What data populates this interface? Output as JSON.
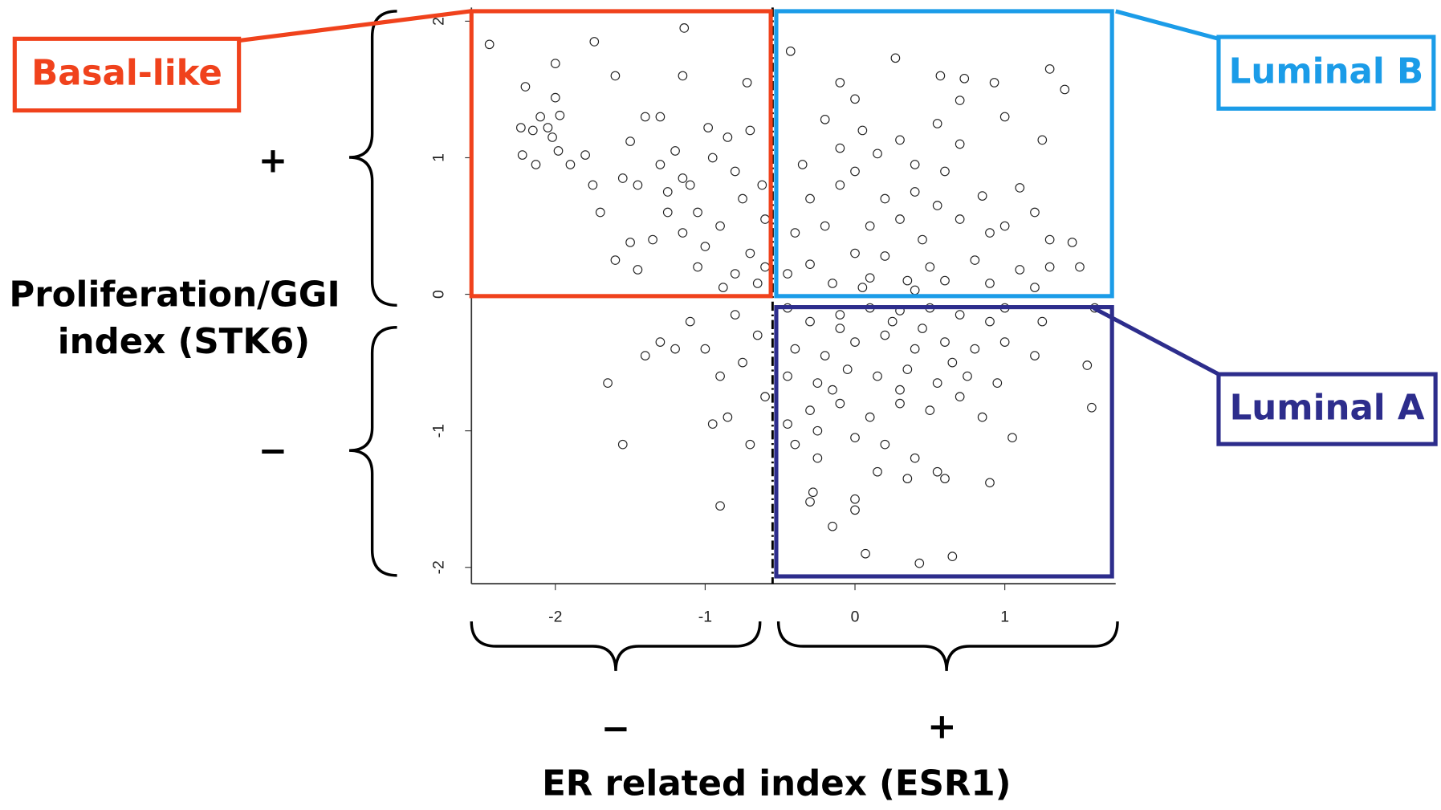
{
  "chart_data": {
    "type": "scatter",
    "xlabel": "ER related index (ESR1)",
    "ylabel": [
      "Proliferation/GGI",
      "index (STK6)"
    ],
    "quadrant_labels": [
      "Basal-like",
      "Luminal B",
      "Luminal A"
    ],
    "quadrant_colors": [
      "#f0421c",
      "#1b9ce8",
      "#2d2d8c"
    ],
    "y_signs": [
      "+",
      "−"
    ],
    "x_signs": [
      "−",
      "+"
    ],
    "cutoffs": {
      "x": -0.55,
      "y": 0
    },
    "xlim": [
      -2.56,
      1.74
    ],
    "ylim": [
      -2.12,
      2.1
    ],
    "xticks": [
      -2,
      -1,
      0,
      1
    ],
    "yticks": [
      2,
      1,
      0,
      -1,
      -2
    ],
    "color": "#222222",
    "x": [
      -2.44,
      -1.74,
      -1.14,
      -2.2,
      -2.0,
      -2.0,
      -1.97,
      -2.05,
      -2.1,
      -2.15,
      -2.23,
      -2.02,
      -1.98,
      -2.22,
      -2.13,
      -1.9,
      -1.8,
      -1.75,
      -1.7,
      -1.6,
      -1.5,
      -1.4,
      -1.55,
      -1.45,
      -1.3,
      -1.3,
      -1.2,
      -1.15,
      -1.1,
      -1.25,
      -1.05,
      -0.95,
      -0.85,
      -0.8,
      -0.75,
      -0.9,
      -1.0,
      -1.15,
      -1.35,
      -1.5,
      -1.6,
      -1.45,
      -0.7,
      -0.6,
      -0.8,
      -0.65,
      -1.15,
      -0.98,
      -0.72,
      -0.7,
      -1.25,
      -1.05,
      -0.88,
      -0.6,
      -0.62,
      -1.65,
      -1.55,
      -1.4,
      -1.3,
      -1.1,
      -1.0,
      -0.9,
      -0.85,
      -0.95,
      -0.75,
      -0.7,
      -0.9,
      -0.65,
      -0.6,
      -0.8,
      -1.2,
      -0.43,
      0.27,
      0.57,
      0.73,
      0.93,
      1.3,
      1.4,
      -0.1,
      0.0,
      0.7,
      1.0,
      0.55,
      0.7,
      0.3,
      -0.2,
      0.05,
      1.25,
      -0.1,
      0.15,
      0.4,
      0.6,
      -0.35,
      -0.3,
      -0.1,
      0.0,
      0.2,
      0.4,
      0.55,
      0.85,
      1.1,
      1.2,
      0.7,
      0.3,
      0.1,
      -0.2,
      -0.4,
      0.45,
      0.9,
      1.0,
      1.3,
      1.45,
      1.5,
      1.3,
      1.1,
      0.8,
      0.5,
      0.2,
      0.0,
      -0.3,
      -0.45,
      0.6,
      0.35,
      0.1,
      -0.15,
      0.9,
      1.2,
      0.05,
      0.4,
      -0.45,
      -0.3,
      -0.1,
      0.1,
      0.3,
      0.5,
      0.7,
      0.9,
      1.0,
      1.25,
      1.6,
      -0.4,
      -0.2,
      0.0,
      0.2,
      0.4,
      0.6,
      0.8,
      1.0,
      1.2,
      -0.45,
      -0.25,
      -0.05,
      0.15,
      0.35,
      0.55,
      0.75,
      0.95,
      1.55,
      1.58,
      -0.45,
      -0.3,
      -0.1,
      0.1,
      0.3,
      0.5,
      0.7,
      0.85,
      1.05,
      0.0,
      -0.25,
      0.2,
      0.4,
      0.6,
      0.9,
      0.15,
      -0.25,
      -0.28,
      0.0,
      -0.3,
      0.0,
      -0.15,
      0.07,
      0.43,
      0.65,
      0.35,
      0.55,
      -0.4,
      -0.1,
      0.25,
      0.45,
      0.65,
      0.3,
      -0.15
    ],
    "values": [
      1.83,
      1.85,
      1.95,
      1.52,
      1.69,
      1.44,
      1.31,
      1.22,
      1.3,
      1.2,
      1.22,
      1.15,
      1.05,
      1.02,
      0.95,
      0.95,
      1.02,
      0.8,
      0.6,
      1.6,
      1.12,
      1.3,
      0.85,
      0.8,
      1.3,
      0.95,
      1.05,
      0.85,
      0.8,
      0.75,
      0.6,
      1.0,
      1.15,
      0.9,
      0.7,
      0.5,
      0.35,
      0.45,
      0.4,
      0.38,
      0.25,
      0.18,
      0.3,
      0.2,
      0.15,
      0.08,
      1.6,
      1.22,
      1.55,
      1.2,
      0.6,
      0.2,
      0.05,
      0.55,
      0.8,
      -0.65,
      -1.1,
      -0.45,
      -0.35,
      -0.2,
      -0.4,
      -0.6,
      -0.9,
      -0.95,
      -0.5,
      -1.1,
      -1.55,
      -0.3,
      -0.75,
      -0.15,
      -0.4,
      1.78,
      1.73,
      1.6,
      1.58,
      1.55,
      1.65,
      1.5,
      1.55,
      1.43,
      1.42,
      1.3,
      1.25,
      1.1,
      1.13,
      1.28,
      1.2,
      1.13,
      1.07,
      1.03,
      0.95,
      0.9,
      0.95,
      0.7,
      0.8,
      0.9,
      0.7,
      0.75,
      0.65,
      0.72,
      0.78,
      0.6,
      0.55,
      0.55,
      0.5,
      0.5,
      0.45,
      0.4,
      0.45,
      0.5,
      0.4,
      0.38,
      0.2,
      0.2,
      0.18,
      0.25,
      0.2,
      0.28,
      0.3,
      0.22,
      0.15,
      0.1,
      0.1,
      0.12,
      0.08,
      0.08,
      0.05,
      0.05,
      0.03,
      -0.1,
      -0.2,
      -0.15,
      -0.1,
      -0.12,
      -0.1,
      -0.15,
      -0.2,
      -0.1,
      -0.2,
      -0.1,
      -0.4,
      -0.45,
      -0.35,
      -0.3,
      -0.4,
      -0.35,
      -0.4,
      -0.35,
      -0.45,
      -0.6,
      -0.65,
      -0.55,
      -0.6,
      -0.55,
      -0.65,
      -0.6,
      -0.65,
      -0.52,
      -0.83,
      -0.95,
      -0.85,
      -0.8,
      -0.9,
      -0.8,
      -0.85,
      -0.75,
      -0.9,
      -1.05,
      -1.05,
      -1.0,
      -1.1,
      -1.2,
      -1.35,
      -1.38,
      -1.3,
      -1.2,
      -1.45,
      -1.5,
      -1.52,
      -1.58,
      -1.7,
      -1.9,
      -1.97,
      -1.92,
      -1.35,
      -1.3,
      -1.1,
      -0.25,
      -0.2,
      -0.25,
      -0.5,
      -0.7,
      -0.7
    ]
  }
}
